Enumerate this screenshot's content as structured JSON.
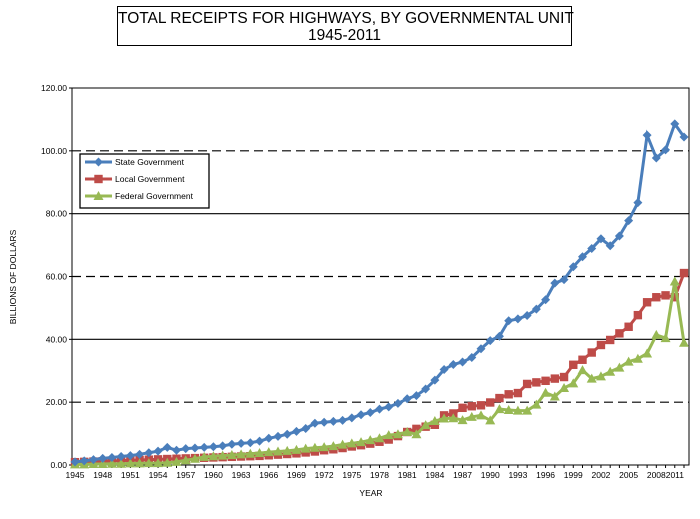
{
  "chart_data": {
    "type": "line",
    "title": "TOTAL RECEIPTS FOR HIGHWAYS, BY GOVERNMENTAL UNIT",
    "subtitle": "1945-2011",
    "xlabel": "YEAR",
    "ylabel": "BILLIONS OF DOLLARS",
    "ylim": [
      0,
      120
    ],
    "xlim": [
      1945,
      2011
    ],
    "y_ticks": [
      "0.00",
      "20.00",
      "40.00",
      "60.00",
      "80.00",
      "100.00",
      "120.00"
    ],
    "x_ticks": [
      "1945",
      "1948",
      "1951",
      "1954",
      "1957",
      "1960",
      "1963",
      "1966",
      "1969",
      "1972",
      "1975",
      "1978",
      "1981",
      "1984",
      "1987",
      "1990",
      "1993",
      "1996",
      "1999",
      "2002",
      "2005",
      "2008",
      "2011"
    ],
    "grid": "horizontal, dashed at 20/60/100, solid at 40/80",
    "legend_position": "top-left",
    "x": [
      1945,
      1946,
      1947,
      1948,
      1949,
      1950,
      1951,
      1952,
      1953,
      1954,
      1955,
      1956,
      1957,
      1958,
      1959,
      1960,
      1961,
      1962,
      1963,
      1964,
      1965,
      1966,
      1967,
      1968,
      1969,
      1970,
      1971,
      1972,
      1973,
      1974,
      1975,
      1976,
      1977,
      1978,
      1979,
      1980,
      1981,
      1982,
      1983,
      1984,
      1985,
      1986,
      1987,
      1988,
      1989,
      1990,
      1991,
      1992,
      1993,
      1994,
      1995,
      1996,
      1997,
      1998,
      1999,
      2000,
      2001,
      2002,
      2003,
      2004,
      2005,
      2006,
      2007,
      2008,
      2009,
      2010,
      2011
    ],
    "series": [
      {
        "name": "State Government",
        "color": "#4a7ebb",
        "marker": "diamond",
        "values": [
          1.0,
          1.3,
          1.7,
          2.1,
          2.4,
          2.7,
          3.0,
          3.4,
          3.9,
          4.4,
          5.6,
          4.7,
          5.2,
          5.4,
          5.6,
          5.8,
          6.1,
          6.6,
          6.9,
          7.1,
          7.6,
          8.5,
          9.1,
          9.8,
          10.7,
          11.6,
          13.3,
          13.6,
          13.9,
          14.2,
          15.0,
          16.0,
          16.7,
          17.8,
          18.5,
          19.6,
          21.1,
          22.1,
          24.2,
          27.0,
          30.4,
          32.0,
          32.8,
          34.2,
          37.0,
          39.6,
          41.0,
          45.9,
          46.5,
          47.6,
          49.6,
          52.6,
          57.9,
          59.0,
          63.1,
          66.3,
          68.9,
          72.0,
          69.8,
          72.9,
          77.8,
          83.5,
          105.0,
          97.7,
          100.3,
          108.6,
          104.4
        ]
      },
      {
        "name": "Local Government",
        "color": "#be4b48",
        "marker": "square",
        "values": [
          0.9,
          1.0,
          1.1,
          1.2,
          1.3,
          1.4,
          1.5,
          1.6,
          1.7,
          1.8,
          1.9,
          2.0,
          2.1,
          2.2,
          2.3,
          2.4,
          2.5,
          2.6,
          2.7,
          2.8,
          2.9,
          3.1,
          3.3,
          3.5,
          3.7,
          4.0,
          4.3,
          4.7,
          5.0,
          5.4,
          5.9,
          6.3,
          6.8,
          7.4,
          8.1,
          9.2,
          10.5,
          11.5,
          12.2,
          12.8,
          15.8,
          16.4,
          18.2,
          18.7,
          19.0,
          19.9,
          21.3,
          22.5,
          22.9,
          25.8,
          26.3,
          26.8,
          27.5,
          28.0,
          31.9,
          33.5,
          35.8,
          38.2,
          39.8,
          41.9,
          44.0,
          47.7,
          51.8,
          53.4,
          54.0,
          53.4,
          61.1
        ]
      },
      {
        "name": "Federal Government",
        "color": "#98b954",
        "marker": "triangle",
        "values": [
          0.2,
          0.2,
          0.3,
          0.3,
          0.4,
          0.4,
          0.5,
          0.5,
          0.6,
          0.6,
          0.7,
          1.0,
          1.5,
          2.0,
          2.6,
          2.8,
          3.0,
          3.2,
          3.4,
          3.6,
          3.8,
          4.1,
          4.3,
          4.5,
          4.8,
          5.2,
          5.5,
          5.7,
          6.0,
          6.5,
          6.9,
          7.3,
          7.9,
          8.5,
          9.5,
          9.8,
          10.5,
          9.8,
          12.7,
          14.0,
          14.8,
          14.9,
          14.3,
          15.3,
          15.8,
          14.2,
          17.8,
          17.5,
          17.3,
          17.3,
          19.2,
          23.0,
          21.8,
          24.5,
          26.0,
          30.2,
          27.5,
          28.2,
          29.7,
          31.0,
          32.9,
          33.8,
          35.5,
          41.4,
          40.4,
          58.4,
          38.9
        ]
      }
    ]
  }
}
